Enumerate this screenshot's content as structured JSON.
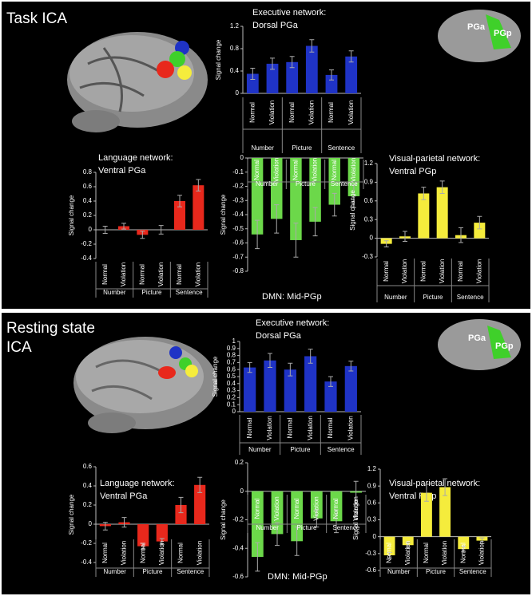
{
  "panels": [
    {
      "label": [
        "Task ICA"
      ],
      "brain_labels": [
        "PGa",
        "PGp"
      ]
    },
    {
      "label": [
        "Resting state",
        "ICA"
      ],
      "brain_labels": [
        "PGa",
        "PGp"
      ]
    }
  ],
  "chart_data": [
    {
      "type": "bar",
      "title": [
        "Executive network:",
        "Dorsal PGa"
      ],
      "y_label": "Signal change",
      "categories": [
        "Normal",
        "Violation",
        "Normal",
        "Violation",
        "Normal",
        "Violation"
      ],
      "groups": [
        "Number",
        "Picture",
        "Sentence"
      ],
      "values": [
        0.35,
        0.53,
        0.56,
        0.85,
        0.33,
        0.66
      ],
      "errors": [
        0.1,
        0.1,
        0.1,
        0.11,
        0.09,
        0.1
      ],
      "color": "#1f33c6",
      "ylim": [
        0,
        1.2
      ],
      "yticks": [
        0,
        0.4,
        0.8,
        1.2
      ]
    },
    {
      "type": "bar",
      "title": [
        "Language network:",
        "Ventral PGa"
      ],
      "y_label": "Signal change",
      "categories": [
        "Normal",
        "Violation",
        "Normal",
        "Violation",
        "Normal",
        "Violation"
      ],
      "groups": [
        "Number",
        "Picture",
        "Sentence"
      ],
      "values": [
        0,
        0.05,
        -0.07,
        0,
        0.4,
        0.62
      ],
      "errors": [
        0.05,
        0.04,
        0.05,
        0.06,
        0.08,
        0.08
      ],
      "color": "#e8281c",
      "ylim": [
        -0.4,
        0.8
      ],
      "yticks": [
        -0.4,
        -0.2,
        0,
        0.2,
        0.4,
        0.6,
        0.8
      ]
    },
    {
      "type": "bar",
      "title": [
        "DMN: Mid-PGp"
      ],
      "y_label": "Signal change",
      "categories": [
        "Normal",
        "Violation",
        "Normal",
        "Violation",
        "Normal",
        "Violation"
      ],
      "groups": [
        "Number",
        "Picture",
        "Sentence"
      ],
      "values": [
        -0.54,
        -0.43,
        -0.58,
        -0.45,
        -0.33,
        -0.27
      ],
      "errors": [
        0.1,
        0.1,
        0.12,
        0.1,
        0.08,
        0.08
      ],
      "color": "#6cd84a",
      "ylim": [
        -0.8,
        0
      ],
      "yticks": [
        0,
        -0.1,
        -0.2,
        -0.3,
        -0.4,
        -0.5,
        -0.6,
        -0.7,
        -0.8
      ]
    },
    {
      "type": "bar",
      "title": [
        "Visual-parietal network:",
        "Ventral PGp"
      ],
      "y_label": "Signal change",
      "categories": [
        "Normal",
        "Violation",
        "Normal",
        "Violation",
        "Normal",
        "Violation"
      ],
      "groups": [
        "Number",
        "Picture",
        "Sentence"
      ],
      "values": [
        -0.09,
        0.03,
        0.72,
        0.82,
        0.05,
        0.25
      ],
      "errors": [
        0.05,
        0.08,
        0.1,
        0.1,
        0.12,
        0.1
      ],
      "color": "#f5ec3c",
      "ylim": [
        -0.3,
        1.2
      ],
      "yticks": [
        -0.3,
        0,
        0.3,
        0.6,
        0.9,
        1.2
      ]
    },
    {
      "type": "bar",
      "title": [
        "Executive network:",
        "Dorsal PGa"
      ],
      "y_label": "Signal change",
      "categories": [
        "Normal",
        "Violation",
        "Normal",
        "Violation",
        "Normal",
        "Violation"
      ],
      "groups": [
        "Number",
        "Picture",
        "Sentence"
      ],
      "values": [
        0.63,
        0.73,
        0.6,
        0.79,
        0.43,
        0.65
      ],
      "errors": [
        0.07,
        0.1,
        0.09,
        0.1,
        0.07,
        0.07
      ],
      "color": "#1f33c6",
      "ylim": [
        0,
        1
      ],
      "yticks": [
        0,
        0.1,
        0.2,
        0.3,
        0.4,
        0.5,
        0.6,
        0.7,
        0.8,
        0.9,
        1
      ]
    },
    {
      "type": "bar",
      "title": [
        "Language network:",
        "Ventral PGa"
      ],
      "y_label": "Signal change",
      "categories": [
        "Normal",
        "Violation",
        "Normal",
        "Violation",
        "Normal",
        "Violation"
      ],
      "groups": [
        "Number",
        "Picture",
        "Sentence"
      ],
      "values": [
        -0.02,
        0.02,
        -0.23,
        -0.18,
        0.2,
        0.41
      ],
      "errors": [
        0.04,
        0.05,
        0.03,
        0.03,
        0.08,
        0.08
      ],
      "color": "#e8281c",
      "ylim": [
        -0.4,
        0.6
      ],
      "yticks": [
        -0.4,
        -0.2,
        0,
        0.2,
        0.4,
        0.6
      ]
    },
    {
      "type": "bar",
      "title": [
        "DMN: Mid-PGp"
      ],
      "y_label": "Signal change",
      "categories": [
        "Normal",
        "Violation",
        "Normal",
        "Violation",
        "Normal",
        "Violation"
      ],
      "groups": [
        "Number",
        "Picture",
        "Sentence"
      ],
      "values": [
        -0.46,
        -0.3,
        -0.35,
        -0.19,
        -0.21,
        -0.01
      ],
      "errors": [
        0.1,
        0.08,
        0.1,
        0.06,
        0.08,
        0.08
      ],
      "color": "#6cd84a",
      "ylim": [
        -0.6,
        0.2
      ],
      "yticks": [
        -0.6,
        -0.4,
        -0.2,
        0,
        0.2
      ]
    },
    {
      "type": "bar",
      "title": [
        "Visual-parietal network:",
        "Ventral PGp"
      ],
      "y_label": "Signal change",
      "categories": [
        "Normal",
        "Violation",
        "Normal",
        "Violation",
        "Normal",
        "Violation"
      ],
      "groups": [
        "Number",
        "Picture",
        "Sentence"
      ],
      "values": [
        -0.33,
        -0.15,
        0.78,
        0.88,
        -0.22,
        -0.07
      ],
      "errors": [
        0.05,
        0.05,
        0.15,
        0.15,
        0.05,
        0.05
      ],
      "color": "#f5ec3c",
      "ylim": [
        -0.6,
        1.2
      ],
      "yticks": [
        -0.6,
        -0.3,
        0,
        0.3,
        0.6,
        0.9,
        1.2
      ]
    }
  ]
}
